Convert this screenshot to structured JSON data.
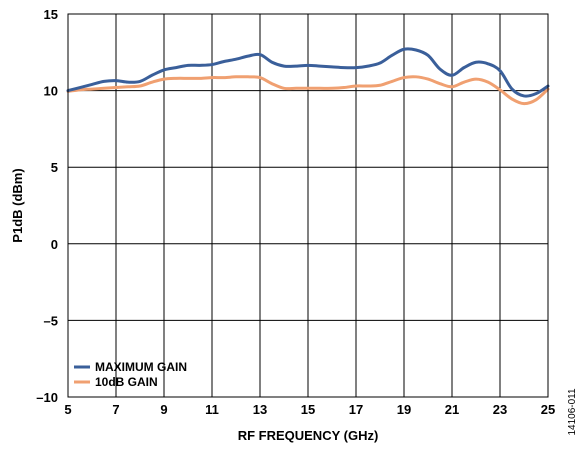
{
  "figure_id": "14106-011",
  "chart_data": {
    "type": "line",
    "title": "",
    "xlabel": "RF FREQUENCY (GHz)",
    "ylabel": "P1dB (dBm)",
    "xlim": [
      5,
      25
    ],
    "ylim": [
      -10,
      15
    ],
    "xticks": [
      5,
      7,
      9,
      11,
      13,
      15,
      17,
      19,
      21,
      23,
      25
    ],
    "yticks": [
      -10,
      -5,
      0,
      5,
      10,
      15
    ],
    "xtick_labels": [
      "5",
      "7",
      "9",
      "11",
      "13",
      "15",
      "17",
      "19",
      "21",
      "23",
      "25"
    ],
    "ytick_labels": [
      "–10",
      "–5",
      "0",
      "5",
      "10",
      "15"
    ],
    "grid": true,
    "legend_position": "bottom-left",
    "series": [
      {
        "name": "MAXIMUM GAIN",
        "color": "#3a5f9a",
        "x": [
          5,
          5.5,
          6,
          6.5,
          7,
          7.5,
          8,
          8.5,
          9,
          9.5,
          10,
          10.5,
          11,
          11.5,
          12,
          12.5,
          13,
          13.5,
          14,
          14.5,
          15,
          15.5,
          16,
          16.5,
          17,
          17.5,
          18,
          18.5,
          19,
          19.5,
          20,
          20.5,
          21,
          21.5,
          22,
          22.5,
          23,
          23.5,
          24,
          24.5,
          25
        ],
        "y": [
          10.0,
          10.2,
          10.4,
          10.6,
          10.65,
          10.55,
          10.6,
          11.0,
          11.35,
          11.5,
          11.65,
          11.65,
          11.7,
          11.9,
          12.05,
          12.25,
          12.35,
          11.85,
          11.6,
          11.6,
          11.65,
          11.6,
          11.55,
          11.5,
          11.5,
          11.6,
          11.8,
          12.3,
          12.7,
          12.65,
          12.3,
          11.4,
          11.0,
          11.5,
          11.85,
          11.75,
          11.3,
          10.1,
          9.65,
          9.8,
          10.3
        ]
      },
      {
        "name": "10dB GAIN",
        "color": "#f0a071",
        "x": [
          5,
          5.5,
          6,
          6.5,
          7,
          7.5,
          8,
          8.5,
          9,
          9.5,
          10,
          10.5,
          11,
          11.5,
          12,
          12.5,
          13,
          13.5,
          14,
          14.5,
          15,
          15.5,
          16,
          16.5,
          17,
          17.5,
          18,
          18.5,
          19,
          19.5,
          20,
          20.5,
          21,
          21.5,
          22,
          22.5,
          23,
          23.5,
          24,
          24.5,
          25
        ],
        "y": [
          9.95,
          10.05,
          10.1,
          10.15,
          10.2,
          10.25,
          10.3,
          10.55,
          10.75,
          10.8,
          10.8,
          10.8,
          10.85,
          10.85,
          10.9,
          10.9,
          10.85,
          10.45,
          10.15,
          10.15,
          10.15,
          10.15,
          10.15,
          10.2,
          10.3,
          10.3,
          10.35,
          10.6,
          10.85,
          10.9,
          10.75,
          10.45,
          10.25,
          10.55,
          10.75,
          10.55,
          10.05,
          9.45,
          9.15,
          9.4,
          10.1
        ]
      }
    ]
  }
}
